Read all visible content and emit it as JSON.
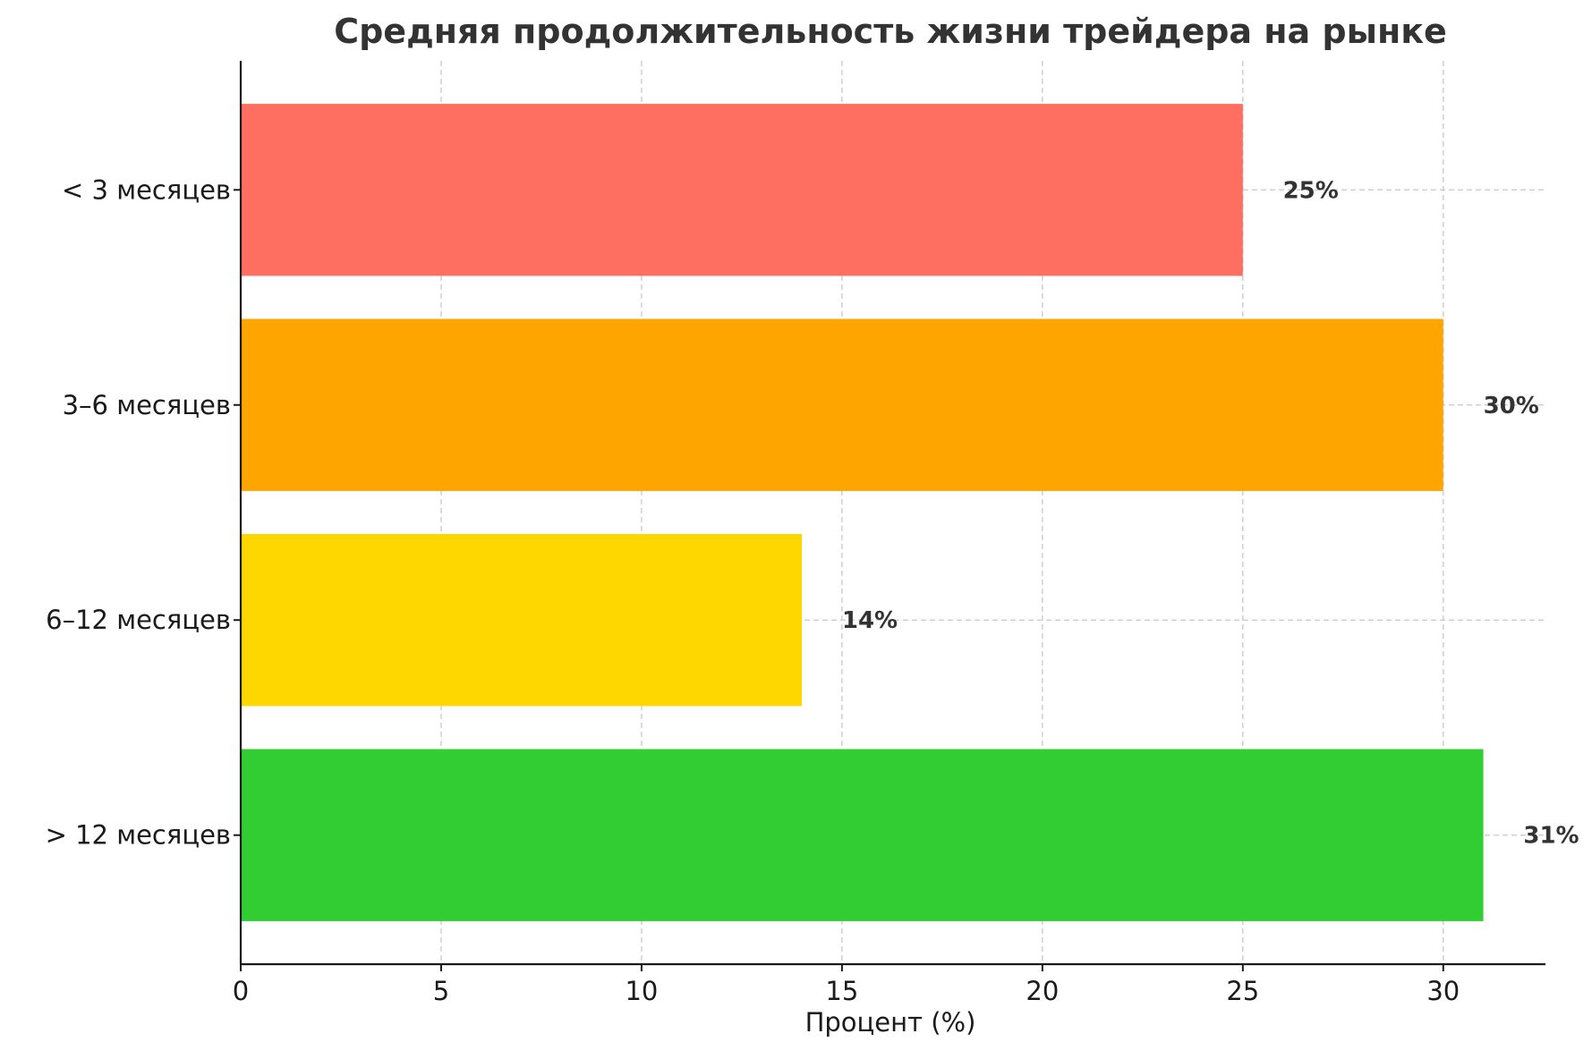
{
  "chart_data": {
    "type": "bar",
    "orientation": "horizontal",
    "title": "Средняя продолжительность жизни трейдера на рынке",
    "xlabel": "Процент (%)",
    "ylabel": "",
    "categories": [
      "< 3 месяцев",
      "3–6 месяцев",
      "6–12 месяцев",
      "> 12 месяцев"
    ],
    "values": [
      25,
      30,
      14,
      31
    ],
    "value_labels": [
      "25%",
      "30%",
      "14%",
      "31%"
    ],
    "colors": [
      "#ff6f61",
      "#ffa500",
      "#ffd700",
      "#32cd32"
    ],
    "xlim": [
      0,
      32.55
    ],
    "xticks": [
      0,
      5,
      10,
      15,
      20,
      25,
      30
    ],
    "xtick_labels": [
      "0",
      "5",
      "10",
      "15",
      "20",
      "25",
      "30"
    ],
    "grid": true,
    "legend": "none"
  }
}
